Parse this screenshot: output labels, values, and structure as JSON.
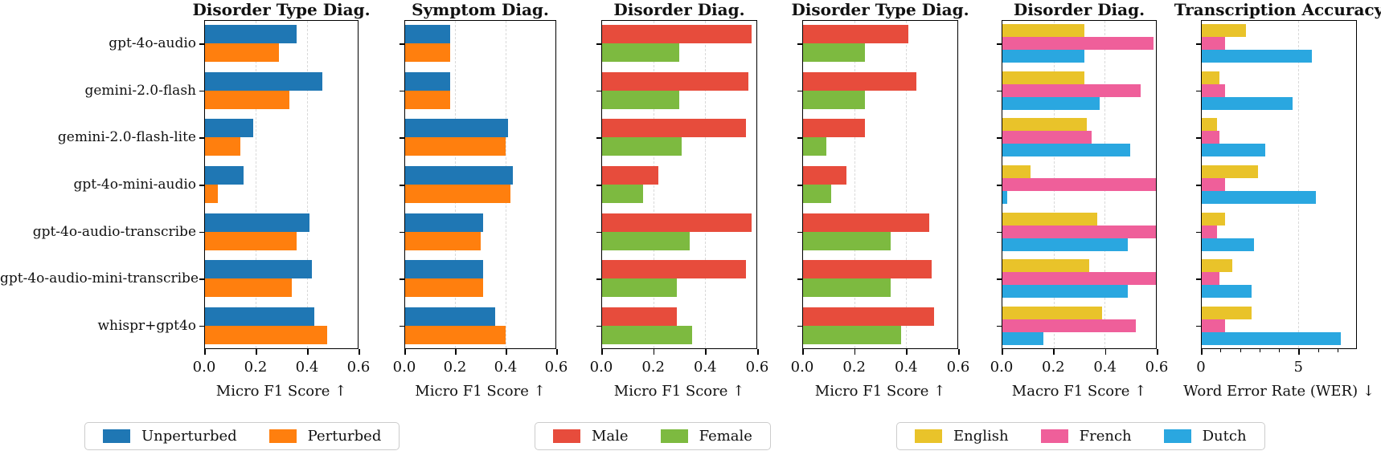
{
  "categories": [
    "gpt-4o-audio",
    "gemini-2.0-flash",
    "gemini-2.0-flash-lite",
    "gpt-4o-mini-audio",
    "gpt-4o-audio-transcribe",
    "gpt-4o-audio-mini-transcribe",
    "whispr+gpt4o"
  ],
  "chart_data": [
    {
      "type": "bar",
      "orientation": "horizontal",
      "title": "Disorder Type Diag.",
      "xlabel": "Micro F1 Score ↑",
      "xlim": [
        0,
        0.6
      ],
      "xticks": [
        0,
        0.2,
        0.4,
        0.6
      ],
      "xtick_labels": [
        "0.0",
        "0.2",
        "0.4",
        "0.6"
      ],
      "grid": "dashed-vertical",
      "series": [
        {
          "name": "Unperturbed",
          "color": "#1f77b4",
          "values": [
            0.36,
            0.46,
            0.19,
            0.15,
            0.41,
            0.42,
            0.43
          ]
        },
        {
          "name": "Perturbed",
          "color": "#ff7f0e",
          "values": [
            0.29,
            0.33,
            0.14,
            0.05,
            0.36,
            0.34,
            0.48
          ]
        }
      ]
    },
    {
      "type": "bar",
      "orientation": "horizontal",
      "title": "Symptom Diag.",
      "xlabel": "Micro F1 Score ↑",
      "xlim": [
        0,
        0.6
      ],
      "xticks": [
        0,
        0.2,
        0.4,
        0.6
      ],
      "xtick_labels": [
        "0.0",
        "0.2",
        "0.4",
        "0.6"
      ],
      "grid": "dashed-vertical",
      "series": [
        {
          "name": "Unperturbed",
          "color": "#1f77b4",
          "values": [
            0.18,
            0.18,
            0.41,
            0.43,
            0.31,
            0.31,
            0.36
          ]
        },
        {
          "name": "Perturbed",
          "color": "#ff7f0e",
          "values": [
            0.18,
            0.18,
            0.4,
            0.42,
            0.3,
            0.31,
            0.4
          ]
        }
      ]
    },
    {
      "type": "bar",
      "orientation": "horizontal",
      "title": "Disorder Diag.",
      "xlabel": "Micro F1 Score ↑",
      "xlim": [
        0,
        0.6
      ],
      "xticks": [
        0,
        0.2,
        0.4,
        0.6
      ],
      "xtick_labels": [
        "0.0",
        "0.2",
        "0.4",
        "0.6"
      ],
      "grid": "dashed-vertical",
      "series": [
        {
          "name": "Male",
          "color": "#e74c3c",
          "values": [
            0.58,
            0.57,
            0.56,
            0.22,
            0.58,
            0.56,
            0.29
          ]
        },
        {
          "name": "Female",
          "color": "#7dba40",
          "values": [
            0.3,
            0.3,
            0.31,
            0.16,
            0.34,
            0.29,
            0.35
          ]
        }
      ]
    },
    {
      "type": "bar",
      "orientation": "horizontal",
      "title": "Disorder Type Diag.",
      "xlabel": "Micro F1 Score ↑",
      "xlim": [
        0,
        0.6
      ],
      "xticks": [
        0,
        0.2,
        0.4,
        0.6
      ],
      "xtick_labels": [
        "0.0",
        "0.2",
        "0.4",
        "0.6"
      ],
      "grid": "dashed-vertical",
      "series": [
        {
          "name": "Male",
          "color": "#e74c3c",
          "values": [
            0.41,
            0.44,
            0.24,
            0.17,
            0.49,
            0.5,
            0.51
          ]
        },
        {
          "name": "Female",
          "color": "#7dba40",
          "values": [
            0.24,
            0.24,
            0.09,
            0.11,
            0.34,
            0.34,
            0.38
          ]
        }
      ]
    },
    {
      "type": "bar",
      "orientation": "horizontal",
      "title": "Disorder Diag.",
      "xlabel": "Macro F1 Score ↑",
      "xlim": [
        0,
        0.6
      ],
      "xticks": [
        0,
        0.2,
        0.4,
        0.6
      ],
      "xtick_labels": [
        "0.0",
        "0.2",
        "0.4",
        "0.6"
      ],
      "grid": "dashed-vertical",
      "series": [
        {
          "name": "English",
          "color": "#e9c32a",
          "values": [
            0.32,
            0.32,
            0.33,
            0.11,
            0.37,
            0.34,
            0.39
          ]
        },
        {
          "name": "French",
          "color": "#ef5f9a",
          "values": [
            0.59,
            0.54,
            0.35,
            0.6,
            0.6,
            0.6,
            0.52
          ]
        },
        {
          "name": "Dutch",
          "color": "#2aa7e0",
          "values": [
            0.32,
            0.38,
            0.5,
            0.02,
            0.49,
            0.49,
            0.16
          ]
        }
      ]
    },
    {
      "type": "bar",
      "orientation": "horizontal",
      "title": "Transcription Accuracy",
      "xlabel": "Word Error Rate (WER) ↓",
      "xlim": [
        0,
        8
      ],
      "xticks": [
        0,
        5
      ],
      "xtick_labels": [
        "0",
        "5"
      ],
      "minor_xticks": [
        1,
        2,
        3,
        4,
        6,
        7
      ],
      "grid": "dashed-vertical",
      "series": [
        {
          "name": "English",
          "color": "#e9c32a",
          "values": [
            2.3,
            0.9,
            0.8,
            2.9,
            1.2,
            1.6,
            2.6
          ]
        },
        {
          "name": "French",
          "color": "#ef5f9a",
          "values": [
            1.2,
            1.2,
            0.9,
            1.2,
            0.8,
            0.9,
            1.2
          ]
        },
        {
          "name": "Dutch",
          "color": "#2aa7e0",
          "values": [
            5.7,
            4.7,
            3.3,
            5.9,
            2.7,
            2.6,
            7.2
          ]
        }
      ]
    }
  ],
  "legends": [
    {
      "items": [
        {
          "label": "Unperturbed",
          "color": "#1f77b4"
        },
        {
          "label": "Perturbed",
          "color": "#ff7f0e"
        }
      ]
    },
    {
      "items": [
        {
          "label": "Male",
          "color": "#e74c3c"
        },
        {
          "label": "Female",
          "color": "#7dba40"
        }
      ]
    },
    {
      "items": [
        {
          "label": "English",
          "color": "#e9c32a"
        },
        {
          "label": "French",
          "color": "#ef5f9a"
        },
        {
          "label": "Dutch",
          "color": "#2aa7e0"
        }
      ]
    }
  ]
}
